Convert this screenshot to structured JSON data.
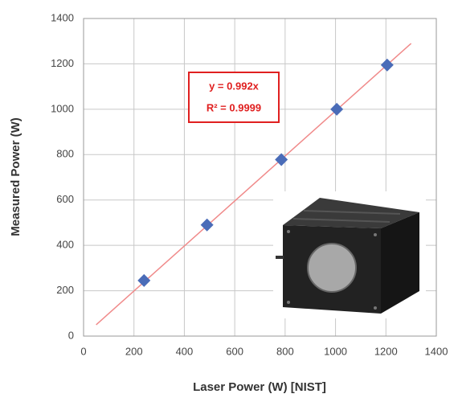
{
  "chart_data": {
    "type": "scatter",
    "x_label": "Laser Power (W) [NIST]",
    "y_label": "Measured Power (W)",
    "series": [
      {
        "x": [
          240,
          490,
          785,
          1005,
          1205
        ],
        "values": [
          245,
          490,
          778,
          1000,
          1195
        ],
        "color": "#4a6cb8"
      }
    ],
    "trendline": {
      "x": [
        50,
        1300
      ],
      "values": [
        50,
        1290
      ],
      "color": "#f08a8a"
    },
    "annotation": [
      "y = 0.992x",
      "R² = 0.9999"
    ],
    "annotation_color": "#e02020",
    "xlim": [
      0,
      1400
    ],
    "xticks": [
      0,
      200,
      400,
      600,
      800,
      1000,
      1200,
      1400
    ],
    "ylim": [
      0,
      1400
    ],
    "yticks": [
      0,
      200,
      400,
      600,
      800,
      1000,
      1200,
      1400
    ],
    "grid": true
  }
}
